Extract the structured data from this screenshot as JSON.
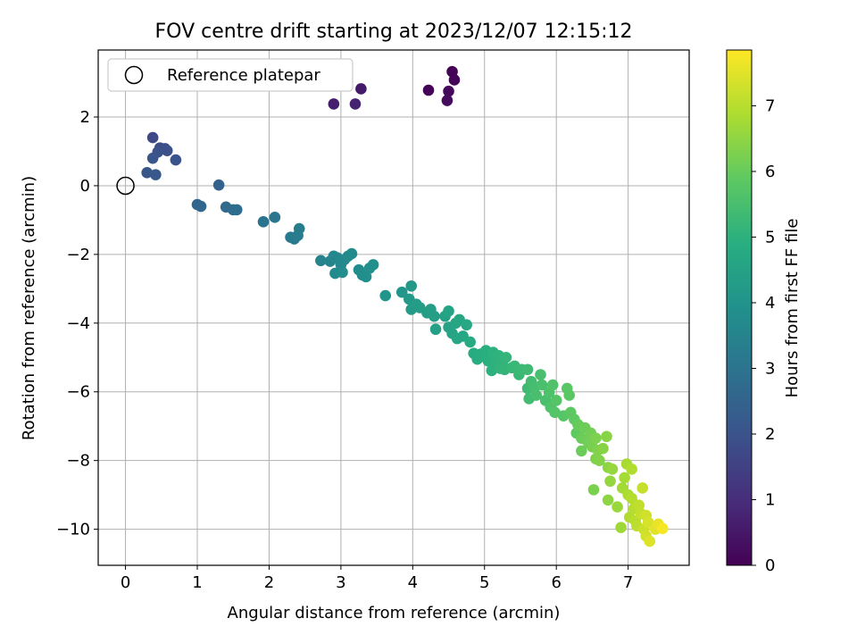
{
  "chart_data": {
    "type": "scatter",
    "title": "FOV centre drift starting at 2023/12/07 12:15:12",
    "xlabel": "Angular distance from reference (arcmin)",
    "ylabel": "Rotation from reference (arcmin)",
    "xlim": [
      -0.38,
      7.85
    ],
    "ylim": [
      -11.05,
      3.95
    ],
    "xticks": [
      0,
      1,
      2,
      3,
      4,
      5,
      6,
      7
    ],
    "yticks": [
      2,
      0,
      -2,
      -4,
      -6,
      -8,
      -10
    ],
    "xtick_labels": [
      "0",
      "1",
      "2",
      "3",
      "4",
      "5",
      "6",
      "7"
    ],
    "ytick_labels": [
      "2",
      "0",
      "−2",
      "−4",
      "−6",
      "−8",
      "−10"
    ],
    "grid": true,
    "legend": {
      "placement": "top-left",
      "entries": [
        "Reference platepar"
      ]
    },
    "reference_point": {
      "label": "Reference platepar",
      "x": 0,
      "y": 0
    },
    "colorbar": {
      "label": "Hours from first FF file",
      "colormap": "viridis",
      "range": [
        0,
        7.85
      ],
      "ticks": [
        0,
        1,
        2,
        3,
        4,
        5,
        6,
        7
      ],
      "tick_labels": [
        "0",
        "1",
        "2",
        "3",
        "4",
        "5",
        "6",
        "7"
      ]
    },
    "series": [
      {
        "points": [
          [
            4.22,
            2.78,
            0.05
          ],
          [
            4.55,
            3.32,
            0.08
          ],
          [
            4.58,
            3.08,
            0.12
          ],
          [
            4.5,
            2.75,
            0.18
          ],
          [
            4.48,
            2.48,
            0.22
          ],
          [
            3.28,
            2.82,
            0.55
          ],
          [
            2.9,
            2.38,
            0.65
          ],
          [
            3.2,
            2.38,
            0.75
          ],
          [
            0.38,
            1.4,
            1.75
          ],
          [
            0.48,
            1.1,
            1.8
          ],
          [
            0.55,
            1.08,
            1.85
          ],
          [
            0.58,
            1.02,
            1.9
          ],
          [
            0.45,
            0.98,
            1.95
          ],
          [
            0.7,
            0.75,
            2.0
          ],
          [
            0.38,
            0.8,
            2.05
          ],
          [
            0.3,
            0.38,
            2.1
          ],
          [
            0.42,
            0.32,
            2.15
          ],
          [
            1.3,
            0.02,
            2.45
          ],
          [
            1.0,
            -0.55,
            2.55
          ],
          [
            1.05,
            -0.6,
            2.6
          ],
          [
            1.4,
            -0.62,
            2.7
          ],
          [
            1.5,
            -0.7,
            2.75
          ],
          [
            1.55,
            -0.7,
            2.8
          ],
          [
            1.92,
            -1.05,
            3.0
          ],
          [
            2.08,
            -0.92,
            3.05
          ],
          [
            2.3,
            -1.5,
            3.15
          ],
          [
            2.35,
            -1.55,
            3.2
          ],
          [
            2.4,
            -1.45,
            3.25
          ],
          [
            2.42,
            -1.25,
            3.3
          ],
          [
            2.72,
            -2.18,
            3.5
          ],
          [
            2.85,
            -2.2,
            3.55
          ],
          [
            2.9,
            -2.05,
            3.6
          ],
          [
            2.95,
            -2.1,
            3.62
          ],
          [
            3.0,
            -2.3,
            3.65
          ],
          [
            3.05,
            -2.15,
            3.68
          ],
          [
            3.1,
            -2.05,
            3.7
          ],
          [
            3.15,
            -1.98,
            3.72
          ],
          [
            2.92,
            -2.55,
            3.75
          ],
          [
            3.02,
            -2.52,
            3.78
          ],
          [
            3.25,
            -2.45,
            3.8
          ],
          [
            3.3,
            -2.6,
            3.82
          ],
          [
            3.35,
            -2.65,
            3.85
          ],
          [
            3.4,
            -2.4,
            3.88
          ],
          [
            3.45,
            -2.3,
            3.9
          ],
          [
            3.62,
            -3.2,
            4.05
          ],
          [
            3.85,
            -3.1,
            4.1
          ],
          [
            3.98,
            -2.92,
            4.15
          ],
          [
            3.95,
            -3.3,
            4.2
          ],
          [
            3.98,
            -3.6,
            4.25
          ],
          [
            4.05,
            -3.45,
            4.3
          ],
          [
            4.1,
            -3.55,
            4.32
          ],
          [
            4.2,
            -3.7,
            4.35
          ],
          [
            4.25,
            -3.6,
            4.38
          ],
          [
            4.3,
            -3.8,
            4.4
          ],
          [
            4.32,
            -4.18,
            4.45
          ],
          [
            4.45,
            -3.8,
            4.5
          ],
          [
            4.5,
            -3.65,
            4.52
          ],
          [
            4.5,
            -4.12,
            4.55
          ],
          [
            4.55,
            -4.3,
            4.58
          ],
          [
            4.6,
            -4.0,
            4.6
          ],
          [
            4.62,
            -4.45,
            4.62
          ],
          [
            4.65,
            -3.9,
            4.65
          ],
          [
            4.7,
            -4.38,
            4.68
          ],
          [
            4.75,
            -4.05,
            4.7
          ],
          [
            4.8,
            -4.55,
            4.75
          ],
          [
            4.85,
            -4.88,
            4.8
          ],
          [
            4.9,
            -5.05,
            4.85
          ],
          [
            4.95,
            -4.9,
            4.88
          ],
          [
            5.02,
            -4.8,
            4.92
          ],
          [
            5.05,
            -5.1,
            4.95
          ],
          [
            5.1,
            -5.38,
            4.98
          ],
          [
            5.12,
            -4.85,
            5.0
          ],
          [
            5.15,
            -5.1,
            5.02
          ],
          [
            5.2,
            -4.95,
            5.05
          ],
          [
            5.22,
            -5.32,
            5.08
          ],
          [
            5.25,
            -5.2,
            5.1
          ],
          [
            5.28,
            -5.35,
            5.12
          ],
          [
            5.3,
            -5.0,
            5.15
          ],
          [
            5.38,
            -5.3,
            5.2
          ],
          [
            5.42,
            -5.25,
            5.22
          ],
          [
            5.48,
            -5.5,
            5.25
          ],
          [
            5.52,
            -5.35,
            5.28
          ],
          [
            5.6,
            -5.35,
            5.32
          ],
          [
            5.6,
            -5.9,
            5.35
          ],
          [
            5.62,
            -6.2,
            5.4
          ],
          [
            5.65,
            -5.7,
            5.42
          ],
          [
            5.7,
            -5.85,
            5.45
          ],
          [
            5.72,
            -6.1,
            5.48
          ],
          [
            5.78,
            -5.5,
            5.5
          ],
          [
            5.8,
            -5.8,
            5.52
          ],
          [
            5.85,
            -6.25,
            5.55
          ],
          [
            5.9,
            -6.02,
            5.6
          ],
          [
            5.92,
            -6.45,
            5.62
          ],
          [
            5.95,
            -5.8,
            5.65
          ],
          [
            5.98,
            -6.6,
            5.7
          ],
          [
            6.0,
            -6.25,
            5.72
          ],
          [
            6.1,
            -6.7,
            5.75
          ],
          [
            6.15,
            -5.9,
            5.8
          ],
          [
            6.18,
            -6.1,
            5.82
          ],
          [
            6.2,
            -6.6,
            5.85
          ],
          [
            6.25,
            -6.8,
            5.88
          ],
          [
            6.28,
            -7.2,
            5.9
          ],
          [
            6.3,
            -6.95,
            5.95
          ],
          [
            6.32,
            -7.0,
            6.0
          ],
          [
            6.35,
            -7.35,
            6.02
          ],
          [
            6.35,
            -7.72,
            6.05
          ],
          [
            6.4,
            -7.05,
            6.08
          ],
          [
            6.42,
            -7.4,
            6.1
          ],
          [
            6.45,
            -7.5,
            6.12
          ],
          [
            6.48,
            -7.2,
            6.15
          ],
          [
            6.5,
            -7.6,
            6.2
          ],
          [
            6.52,
            -8.85,
            6.25
          ],
          [
            6.55,
            -7.35,
            6.28
          ],
          [
            6.55,
            -7.95,
            6.3
          ],
          [
            6.58,
            -7.7,
            6.32
          ],
          [
            6.6,
            -8.0,
            6.35
          ],
          [
            6.65,
            -7.65,
            6.4
          ],
          [
            6.7,
            -7.3,
            6.42
          ],
          [
            6.72,
            -8.2,
            6.45
          ],
          [
            6.72,
            -9.15,
            6.5
          ],
          [
            6.75,
            -8.6,
            6.55
          ],
          [
            6.78,
            -8.25,
            6.58
          ],
          [
            6.85,
            -9.35,
            6.62
          ],
          [
            6.9,
            -9.95,
            6.7
          ],
          [
            6.92,
            -8.8,
            6.75
          ],
          [
            6.95,
            -8.5,
            6.78
          ],
          [
            6.98,
            -8.1,
            6.8
          ],
          [
            7.0,
            -9.0,
            6.85
          ],
          [
            7.02,
            -9.65,
            6.9
          ],
          [
            7.05,
            -8.25,
            6.92
          ],
          [
            7.05,
            -9.1,
            6.95
          ],
          [
            7.08,
            -9.4,
            6.98
          ],
          [
            7.1,
            -9.75,
            7.0
          ],
          [
            7.12,
            -9.9,
            7.05
          ],
          [
            7.15,
            -9.3,
            7.1
          ],
          [
            7.18,
            -9.55,
            7.15
          ],
          [
            7.2,
            -8.8,
            7.18
          ],
          [
            7.22,
            -10.0,
            7.22
          ],
          [
            7.25,
            -9.6,
            7.28
          ],
          [
            7.25,
            -10.2,
            7.32
          ],
          [
            7.28,
            -9.8,
            7.38
          ],
          [
            7.3,
            -10.35,
            7.45
          ],
          [
            7.38,
            -10.0,
            7.5
          ],
          [
            7.42,
            -9.85,
            7.6
          ],
          [
            7.48,
            -9.98,
            7.75
          ]
        ]
      }
    ]
  }
}
